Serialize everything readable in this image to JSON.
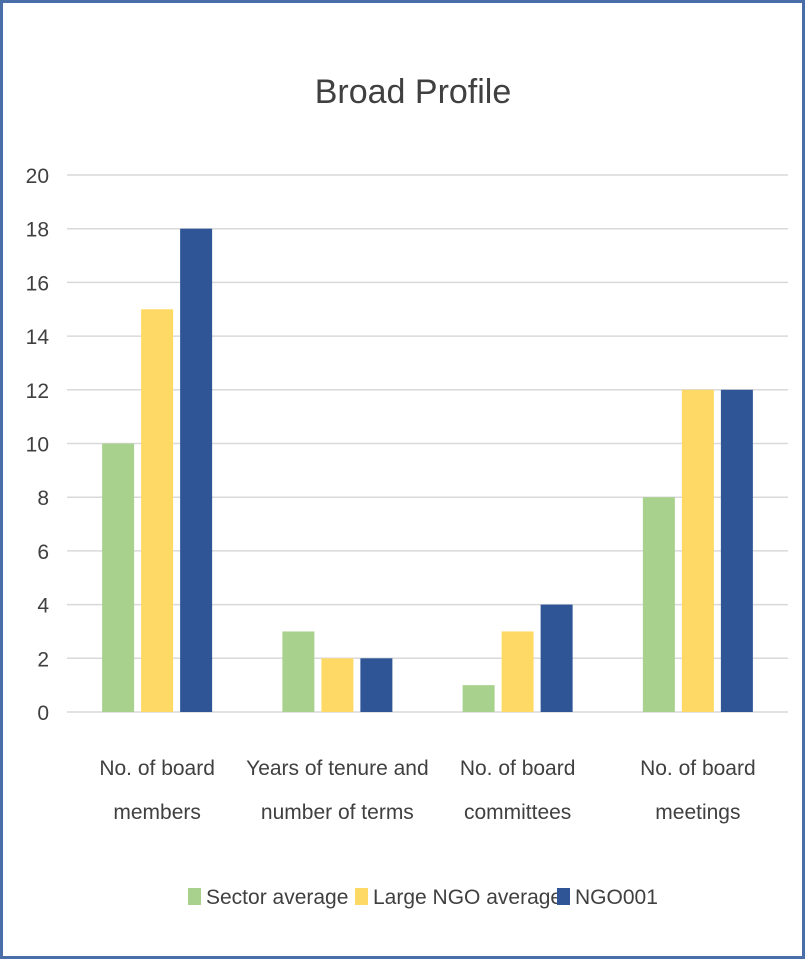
{
  "chart_data": {
    "type": "bar",
    "title": "Broad Profile",
    "categories": [
      [
        "No. of board",
        "members"
      ],
      [
        "Years of tenure and",
        "number of terms"
      ],
      [
        "No. of board",
        "committees"
      ],
      [
        "No. of board",
        "meetings"
      ]
    ],
    "series": [
      {
        "name": "Sector average",
        "color": "#a9d18e",
        "values": [
          10,
          3,
          1,
          8
        ]
      },
      {
        "name": "Large NGO average",
        "color": "#ffd966",
        "values": [
          15,
          2,
          3,
          12
        ]
      },
      {
        "name": "NGO001",
        "color": "#2f5597",
        "values": [
          18,
          2,
          4,
          12
        ]
      }
    ],
    "yticks": [
      0,
      2,
      4,
      6,
      8,
      10,
      12,
      14,
      16,
      18,
      20
    ],
    "ylim": [
      0,
      20
    ],
    "grid": true,
    "legend_position": "bottom"
  }
}
